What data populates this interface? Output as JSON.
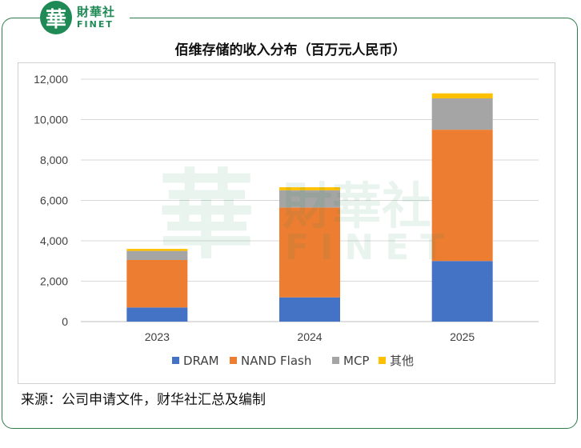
{
  "brand": {
    "logo_char": "華",
    "name_cn": "財華社",
    "name_en": "FINET"
  },
  "title": "佰维存储的收入分布（百万元人民币）",
  "source": "来源：公司申请文件，财华社汇总及编制",
  "colors": {
    "DRAM": "#4472C4",
    "NAND Flash": "#ED7D31",
    "MCP": "#A5A5A5",
    "其他": "#FFC000",
    "frame": "#2e7d4a",
    "brand": "#1f8a55"
  },
  "chart_data": {
    "type": "bar",
    "stacked": true,
    "title": "佰维存储的收入分布（百万元人民币）",
    "categories": [
      "2023",
      "2024",
      "2025"
    ],
    "series": [
      {
        "name": "DRAM",
        "values": [
          700,
          1200,
          3000
        ]
      },
      {
        "name": "NAND Flash",
        "values": [
          2350,
          4450,
          6500
        ]
      },
      {
        "name": "MCP",
        "values": [
          450,
          850,
          1550
        ]
      },
      {
        "name": "其他",
        "values": [
          100,
          150,
          250
        ]
      }
    ],
    "ylim": [
      0,
      12000
    ],
    "yticks": [
      "0",
      "2,000",
      "4,000",
      "6,000",
      "8,000",
      "10,000",
      "12,000"
    ],
    "grid": true,
    "legend": "bottom"
  }
}
